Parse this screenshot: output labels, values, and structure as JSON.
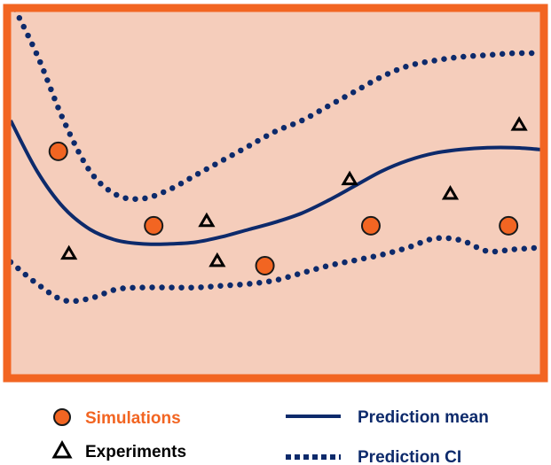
{
  "chart_data": {
    "type": "scatter",
    "title": "",
    "xlabel": "",
    "ylabel": "",
    "xlim": [
      0,
      10
    ],
    "ylim": [
      0,
      10
    ],
    "grid": false,
    "legend_position": "bottom",
    "colors": {
      "frame": "#f26522",
      "plot_background": "#f5cdbb",
      "simulations": "#f26522",
      "curves": "#0d2a6b",
      "experiments_stroke": "#000000",
      "simulations_label": "#f26522",
      "experiments_label": "#000000",
      "curve_label": "#0d2a6b"
    },
    "series": [
      {
        "name": "Simulations",
        "kind": "points",
        "marker": "circle",
        "x": [
          0.9,
          2.7,
          4.8,
          6.8,
          9.4
        ],
        "y": [
          6.15,
          4.1,
          3.0,
          4.1,
          4.1
        ]
      },
      {
        "name": "Experiments",
        "kind": "points",
        "marker": "triangle",
        "x": [
          1.1,
          3.7,
          3.9,
          6.4,
          8.3,
          9.6
        ],
        "y": [
          3.35,
          4.25,
          3.15,
          5.4,
          5.0,
          6.9
        ]
      },
      {
        "name": "Prediction mean",
        "kind": "line",
        "style": "solid",
        "x": [
          0,
          0.5,
          1,
          1.5,
          2,
          2.5,
          3,
          3.5,
          4,
          4.5,
          5,
          5.5,
          6,
          6.5,
          7,
          7.5,
          8,
          8.5,
          9,
          9.5,
          10
        ],
        "y": [
          7.0,
          5.6,
          4.6,
          4.0,
          3.7,
          3.6,
          3.6,
          3.65,
          3.8,
          4.0,
          4.2,
          4.45,
          4.8,
          5.2,
          5.6,
          5.9,
          6.1,
          6.2,
          6.25,
          6.25,
          6.2
        ]
      },
      {
        "name": "Prediction CI",
        "kind": "line",
        "style": "dotted",
        "x": [
          0,
          0.5,
          1,
          1.5,
          2,
          2.5,
          3,
          3.5,
          4,
          4.5,
          5,
          5.5,
          6,
          6.5,
          7,
          7.5,
          8,
          8.5,
          9,
          9.5,
          10
        ],
        "y": [
          10.3,
          8.8,
          7.0,
          5.6,
          4.95,
          4.85,
          5.1,
          5.5,
          5.9,
          6.3,
          6.7,
          7.0,
          7.4,
          7.8,
          8.2,
          8.5,
          8.65,
          8.75,
          8.8,
          8.85,
          8.85
        ]
      },
      {
        "name": "Prediction CI lower",
        "kind": "line",
        "style": "dotted",
        "x": [
          0,
          0.5,
          1,
          1.5,
          2,
          2.5,
          3,
          3.5,
          4,
          4.5,
          5,
          5.5,
          6,
          6.5,
          7,
          7.5,
          8,
          8.5,
          9,
          9.5,
          10
        ],
        "y": [
          3.1,
          2.5,
          2.05,
          2.1,
          2.35,
          2.4,
          2.4,
          2.4,
          2.45,
          2.5,
          2.6,
          2.8,
          3.0,
          3.15,
          3.3,
          3.5,
          3.75,
          3.7,
          3.4,
          3.45,
          3.5
        ]
      }
    ],
    "legend": [
      {
        "label": "Simulations",
        "marker": "circle"
      },
      {
        "label": "Experiments",
        "marker": "triangle"
      },
      {
        "label": "Prediction mean",
        "marker": "solid-line"
      },
      {
        "label": "Prediction CI",
        "marker": "dotted-line"
      }
    ]
  }
}
